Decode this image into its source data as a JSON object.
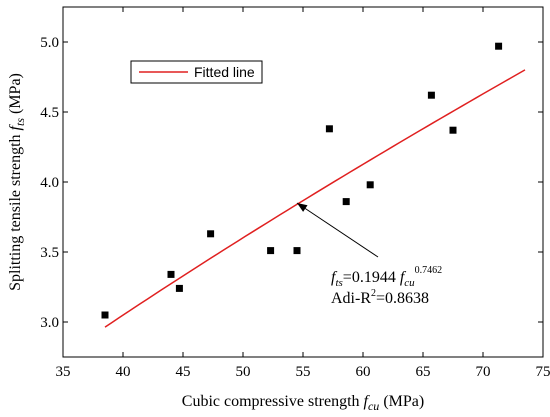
{
  "chart_data": {
    "type": "scatter",
    "xlim": [
      35,
      75
    ],
    "ylim": [
      2.75,
      5.25
    ],
    "x_ticks": [
      35,
      40,
      45,
      50,
      55,
      60,
      65,
      70,
      75
    ],
    "x_tick_labels": [
      "35",
      "40",
      "45",
      "50",
      "55",
      "60",
      "65",
      "70",
      "75"
    ],
    "y_ticks": [
      3.0,
      3.5,
      4.0,
      4.5,
      5.0
    ],
    "y_tick_labels": [
      "3.0",
      "3.5",
      "4.0",
      "4.5",
      "5.0"
    ],
    "grid": false,
    "legend_position": "top-left",
    "xlabel": {
      "main": "Cubic compressive strength ",
      "sym": "f",
      "sub": "cu",
      "unit": " (MPa)"
    },
    "ylabel": {
      "main": "Splitting tensile strength ",
      "sym": "f",
      "sub": "ts",
      "unit": " (MPa)"
    },
    "series": [
      {
        "kind": "points",
        "marker": "square",
        "color": "#000000",
        "points": [
          [
            38.5,
            3.05
          ],
          [
            44.0,
            3.34
          ],
          [
            44.7,
            3.24
          ],
          [
            47.3,
            3.63
          ],
          [
            52.3,
            3.51
          ],
          [
            54.5,
            3.51
          ],
          [
            57.2,
            4.38
          ],
          [
            58.6,
            3.86
          ],
          [
            60.6,
            3.98
          ],
          [
            65.7,
            4.62
          ],
          [
            67.5,
            4.37
          ],
          [
            71.3,
            4.97
          ]
        ]
      },
      {
        "kind": "line",
        "name": "Fitted line",
        "color": "#e02020",
        "coef": 0.1944,
        "exponent": 0.7462,
        "x_range": [
          38.5,
          73.5
        ]
      }
    ],
    "annotation": {
      "eq_lhs_sym": "f",
      "eq_lhs_sub": "ts",
      "eq_rhs_prefix": "=0.1944 ",
      "eq_rhs_sym": "f",
      "eq_rhs_sub": "cu",
      "eq_exponent": "0.7462",
      "r2_prefix": "Adi-R",
      "r2_sup": "2",
      "r2_suffix": "=0.8638",
      "arrow_target": [
        54.5,
        3.85
      ]
    }
  }
}
